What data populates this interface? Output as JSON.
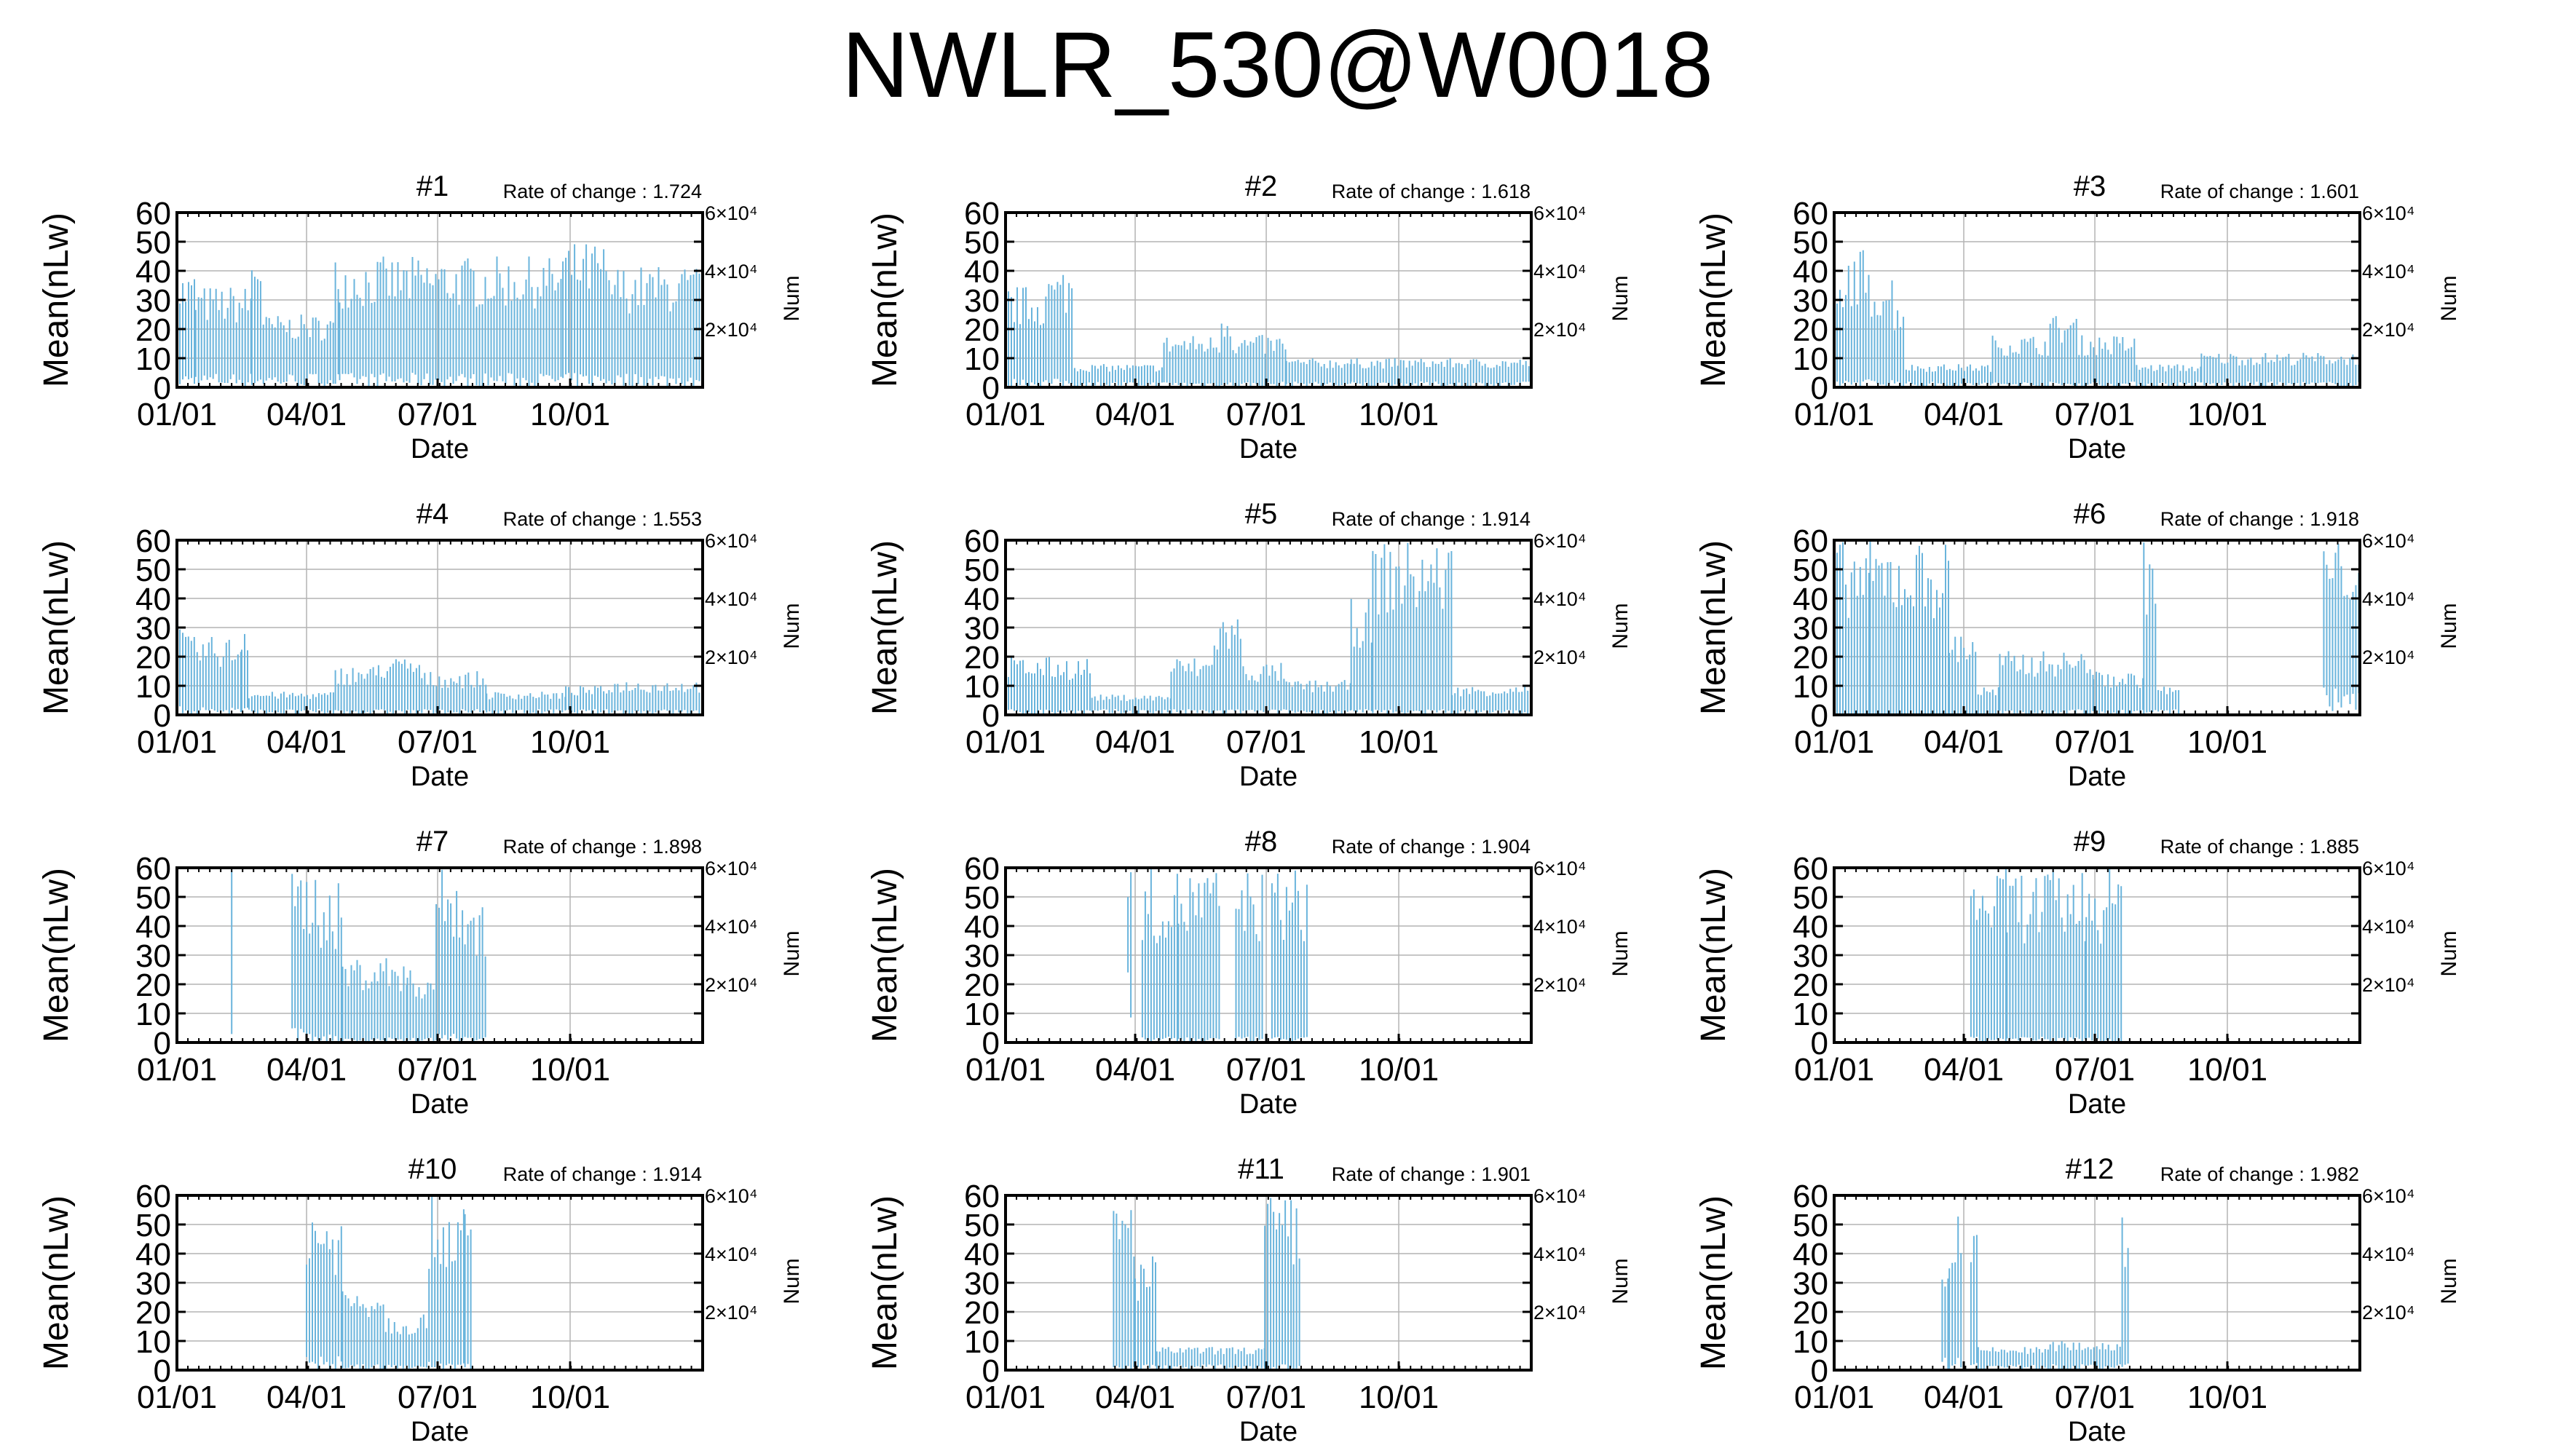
{
  "title": "NWLR_530@W0018",
  "colors": {
    "series": "#6ab4dc",
    "grid": "#b4b4b4",
    "axis": "#000000",
    "background": "#ffffff"
  },
  "shared_axes": {
    "ylabel_left": "Mean(nLw)",
    "ylabel_right": "Num",
    "xlabel": "Date",
    "y_ticks": [
      "0",
      "10",
      "20",
      "30",
      "40",
      "50",
      "60"
    ],
    "ylim": [
      0,
      60
    ],
    "right_ticks": [
      "2×10⁴",
      "4×10⁴",
      "6×10⁴"
    ],
    "right_ylim": [
      0,
      60000
    ],
    "x_ticks": [
      "01/01",
      "04/01",
      "07/01",
      "10/01"
    ],
    "x_tick_days": [
      0,
      90,
      181,
      273
    ],
    "xlim_days": [
      0,
      365
    ]
  },
  "chart_data": [
    {
      "type": "bar",
      "title": "#1",
      "annotation": "Rate of change : 1.724",
      "grid": true,
      "series": [
        {
          "spans": [
            {
              "start_day": 0,
              "end_day": 13,
              "low": 5,
              "high": 40
            },
            {
              "start_day": 13,
              "end_day": 52,
              "low": 5,
              "high": 35
            },
            {
              "start_day": 52,
              "end_day": 60,
              "low": 5,
              "high": 50
            },
            {
              "start_day": 60,
              "end_day": 110,
              "low": 5,
              "high": 25
            },
            {
              "start_day": 110,
              "end_day": 113,
              "low": 5,
              "high": 45
            },
            {
              "start_day": 113,
              "end_day": 268,
              "low": 5,
              "high": 45
            },
            {
              "start_day": 268,
              "end_day": 298,
              "low": 5,
              "high": 50
            },
            {
              "start_day": 298,
              "end_day": 365,
              "low": 5,
              "high": 42
            }
          ]
        }
      ]
    },
    {
      "type": "bar",
      "title": "#2",
      "annotation": "Rate of change : 1.618",
      "grid": true,
      "series": [
        {
          "spans": [
            {
              "start_day": 0,
              "end_day": 28,
              "low": 3,
              "high": 35
            },
            {
              "start_day": 28,
              "end_day": 40,
              "low": 3,
              "high": 40
            },
            {
              "start_day": 40,
              "end_day": 48,
              "low": 3,
              "high": 42
            },
            {
              "start_day": 48,
              "end_day": 110,
              "low": 2,
              "high": 8
            },
            {
              "start_day": 110,
              "end_day": 150,
              "low": 2,
              "high": 18
            },
            {
              "start_day": 150,
              "end_day": 158,
              "low": 2,
              "high": 28
            },
            {
              "start_day": 158,
              "end_day": 195,
              "low": 2,
              "high": 18
            },
            {
              "start_day": 195,
              "end_day": 240,
              "low": 2,
              "high": 10
            },
            {
              "start_day": 240,
              "end_day": 365,
              "low": 2,
              "high": 10
            }
          ]
        }
      ]
    },
    {
      "type": "bar",
      "title": "#3",
      "annotation": "Rate of change : 1.601",
      "grid": true,
      "series": [
        {
          "spans": [
            {
              "start_day": 0,
              "end_day": 10,
              "low": 3,
              "high": 35
            },
            {
              "start_day": 10,
              "end_day": 22,
              "low": 3,
              "high": 48
            },
            {
              "start_day": 22,
              "end_day": 42,
              "low": 3,
              "high": 40
            },
            {
              "start_day": 42,
              "end_day": 50,
              "low": 3,
              "high": 32
            },
            {
              "start_day": 50,
              "end_day": 110,
              "low": 2,
              "high": 8
            },
            {
              "start_day": 110,
              "end_day": 150,
              "low": 2,
              "high": 18
            },
            {
              "start_day": 150,
              "end_day": 170,
              "low": 2,
              "high": 25
            },
            {
              "start_day": 170,
              "end_day": 210,
              "low": 2,
              "high": 18
            },
            {
              "start_day": 210,
              "end_day": 255,
              "low": 2,
              "high": 8
            },
            {
              "start_day": 255,
              "end_day": 365,
              "low": 2,
              "high": 12
            }
          ]
        }
      ]
    },
    {
      "type": "bar",
      "title": "#4",
      "annotation": "Rate of change : 1.553",
      "grid": true,
      "series": [
        {
          "spans": [
            {
              "start_day": 0,
              "end_day": 8,
              "low": 3,
              "high": 30
            },
            {
              "start_day": 8,
              "end_day": 45,
              "low": 3,
              "high": 27
            },
            {
              "start_day": 45,
              "end_day": 50,
              "low": 3,
              "high": 35
            },
            {
              "start_day": 50,
              "end_day": 110,
              "low": 2,
              "high": 8
            },
            {
              "start_day": 110,
              "end_day": 140,
              "low": 2,
              "high": 17
            },
            {
              "start_day": 140,
              "end_day": 170,
              "low": 2,
              "high": 20
            },
            {
              "start_day": 170,
              "end_day": 215,
              "low": 2,
              "high": 15
            },
            {
              "start_day": 215,
              "end_day": 270,
              "low": 2,
              "high": 8
            },
            {
              "start_day": 270,
              "end_day": 300,
              "low": 2,
              "high": 10
            },
            {
              "start_day": 300,
              "end_day": 365,
              "low": 2,
              "high": 12
            }
          ]
        }
      ]
    },
    {
      "type": "bar",
      "title": "#5",
      "annotation": "Rate of change : 1.914",
      "grid": true,
      "series": [
        {
          "spans": [
            {
              "start_day": 0,
              "end_day": 60,
              "low": 2,
              "high": 20
            },
            {
              "start_day": 60,
              "end_day": 115,
              "low": 2,
              "high": 7
            },
            {
              "start_day": 115,
              "end_day": 145,
              "low": 2,
              "high": 20
            },
            {
              "start_day": 145,
              "end_day": 165,
              "low": 2,
              "high": 35
            },
            {
              "start_day": 165,
              "end_day": 195,
              "low": 2,
              "high": 18
            },
            {
              "start_day": 195,
              "end_day": 240,
              "low": 2,
              "high": 12
            },
            {
              "start_day": 240,
              "end_day": 255,
              "low": 2,
              "high": 40
            },
            {
              "start_day": 255,
              "end_day": 310,
              "low": 2,
              "high": 60
            },
            {
              "start_day": 310,
              "end_day": 365,
              "low": 2,
              "high": 10
            }
          ]
        }
      ]
    },
    {
      "type": "bar",
      "title": "#6",
      "annotation": "Rate of change : 1.918",
      "grid": true,
      "series": [
        {
          "spans": [
            {
              "start_day": 0,
              "end_day": 10,
              "low": 0,
              "high": 60
            },
            {
              "start_day": 10,
              "end_day": 25,
              "low": 0,
              "high": 60
            },
            {
              "start_day": 25,
              "end_day": 45,
              "low": 0,
              "high": 60
            },
            {
              "start_day": 45,
              "end_day": 80,
              "low": 0,
              "high": 60
            },
            {
              "start_day": 80,
              "end_day": 100,
              "low": 0,
              "high": 30
            },
            {
              "start_day": 100,
              "end_day": 115,
              "low": 0,
              "high": 10
            },
            {
              "start_day": 115,
              "end_day": 180,
              "low": 2,
              "high": 22
            },
            {
              "start_day": 180,
              "end_day": 215,
              "low": 2,
              "high": 15
            },
            {
              "start_day": 215,
              "end_day": 225,
              "low": 2,
              "high": 60
            },
            {
              "start_day": 225,
              "end_day": 240,
              "low": 2,
              "high": 10
            },
            {
              "start_day": 340,
              "end_day": 365,
              "low": 10,
              "high": 60
            }
          ]
        }
      ]
    },
    {
      "type": "bar",
      "title": "#7",
      "annotation": "Rate of change : 1.898",
      "grid": true,
      "series": [
        {
          "spans": [
            {
              "start_day": 38,
              "end_day": 40,
              "low": 8,
              "high": 60
            },
            {
              "start_day": 80,
              "end_day": 100,
              "low": 5,
              "high": 60
            },
            {
              "start_day": 100,
              "end_day": 115,
              "low": 3,
              "high": 55
            },
            {
              "start_day": 115,
              "end_day": 160,
              "low": 2,
              "high": 30
            },
            {
              "start_day": 160,
              "end_day": 180,
              "low": 2,
              "high": 25
            },
            {
              "start_day": 180,
              "end_day": 200,
              "low": 3,
              "high": 60
            },
            {
              "start_day": 200,
              "end_day": 215,
              "low": 3,
              "high": 50
            }
          ]
        }
      ]
    },
    {
      "type": "bar",
      "title": "#8",
      "annotation": "Rate of change : 1.904",
      "grid": true,
      "series": [
        {
          "spans": [
            {
              "start_day": 85,
              "end_day": 88,
              "low": 30,
              "high": 60
            },
            {
              "start_day": 95,
              "end_day": 120,
              "low": 2,
              "high": 60
            },
            {
              "start_day": 120,
              "end_day": 150,
              "low": 2,
              "high": 60
            },
            {
              "start_day": 160,
              "end_day": 180,
              "low": 2,
              "high": 60
            },
            {
              "start_day": 185,
              "end_day": 210,
              "low": 2,
              "high": 60
            }
          ]
        }
      ]
    },
    {
      "type": "bar",
      "title": "#9",
      "annotation": "Rate of change : 1.885",
      "grid": true,
      "series": [
        {
          "spans": [
            {
              "start_day": 95,
              "end_day": 120,
              "low": 2,
              "high": 60
            },
            {
              "start_day": 120,
              "end_day": 150,
              "low": 2,
              "high": 60
            },
            {
              "start_day": 150,
              "end_day": 175,
              "low": 2,
              "high": 60
            },
            {
              "start_day": 175,
              "end_day": 200,
              "low": 2,
              "high": 60
            }
          ]
        }
      ]
    },
    {
      "type": "bar",
      "title": "#10",
      "annotation": "Rate of change : 1.914",
      "grid": true,
      "series": [
        {
          "spans": [
            {
              "start_day": 90,
              "end_day": 100,
              "low": 5,
              "high": 60
            },
            {
              "start_day": 100,
              "end_day": 115,
              "low": 5,
              "high": 55
            },
            {
              "start_day": 115,
              "end_day": 145,
              "low": 2,
              "high": 30
            },
            {
              "start_day": 145,
              "end_day": 175,
              "low": 2,
              "high": 20
            },
            {
              "start_day": 175,
              "end_day": 185,
              "low": 3,
              "high": 60
            },
            {
              "start_day": 185,
              "end_day": 200,
              "low": 3,
              "high": 60
            },
            {
              "start_day": 200,
              "end_day": 205,
              "low": 3,
              "high": 55
            }
          ]
        }
      ]
    },
    {
      "type": "bar",
      "title": "#11",
      "annotation": "Rate of change : 1.901",
      "grid": true,
      "series": [
        {
          "spans": [
            {
              "start_day": 75,
              "end_day": 90,
              "low": 2,
              "high": 60
            },
            {
              "start_day": 90,
              "end_day": 105,
              "low": 2,
              "high": 40
            },
            {
              "start_day": 105,
              "end_day": 180,
              "low": 2,
              "high": 8
            },
            {
              "start_day": 180,
              "end_day": 200,
              "low": 2,
              "high": 60
            },
            {
              "start_day": 200,
              "end_day": 205,
              "low": 2,
              "high": 60
            }
          ]
        }
      ]
    },
    {
      "type": "bar",
      "title": "#12",
      "annotation": "Rate of change : 1.982",
      "grid": true,
      "series": [
        {
          "spans": [
            {
              "start_day": 75,
              "end_day": 80,
              "low": 5,
              "high": 35
            },
            {
              "start_day": 80,
              "end_day": 90,
              "low": 5,
              "high": 55
            },
            {
              "start_day": 95,
              "end_day": 100,
              "low": 5,
              "high": 50
            },
            {
              "start_day": 100,
              "end_day": 150,
              "low": 2,
              "high": 8
            },
            {
              "start_day": 150,
              "end_day": 200,
              "low": 2,
              "high": 10
            },
            {
              "start_day": 200,
              "end_day": 205,
              "low": 3,
              "high": 60
            }
          ]
        }
      ]
    }
  ]
}
